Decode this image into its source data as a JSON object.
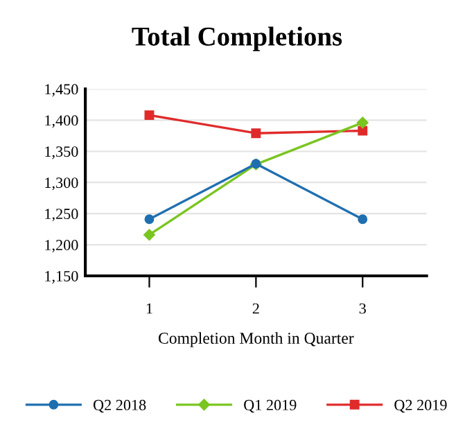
{
  "chart_data": {
    "type": "line",
    "title": "Total Completions",
    "xlabel": "Completion Month in Quarter",
    "categories": [
      "1",
      "2",
      "3"
    ],
    "series": [
      {
        "name": "Q2 2018",
        "color": "#1f6fb0",
        "marker": "circle",
        "values": [
          1241,
          1330,
          1241
        ]
      },
      {
        "name": "Q1 2019",
        "color": "#7ac520",
        "marker": "diamond",
        "values": [
          1216,
          1329,
          1396
        ]
      },
      {
        "name": "Q2 2019",
        "color": "#e02b2b",
        "marker": "square",
        "values": [
          1408,
          1379,
          1383
        ]
      }
    ],
    "ylim": [
      1150,
      1450
    ],
    "yticks": [
      {
        "value": 1150,
        "label": "1,150"
      },
      {
        "value": 1200,
        "label": "1,200"
      },
      {
        "value": 1250,
        "label": "1,250"
      },
      {
        "value": 1300,
        "label": "1,300"
      },
      {
        "value": 1350,
        "label": "1,350"
      },
      {
        "value": 1400,
        "label": "1,400"
      },
      {
        "value": 1450,
        "label": "1,450"
      }
    ],
    "grid": "y",
    "legend": "bottom"
  }
}
